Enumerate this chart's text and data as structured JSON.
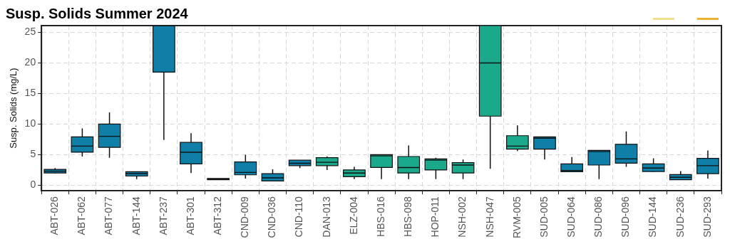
{
  "chart_data": {
    "type": "box",
    "title": "Susp. Solids Summer 2024",
    "ylabel": "Susp. Solids (mg/L)",
    "categories": [
      "ABT-026",
      "ABT-062",
      "ABT-077",
      "ABT-144",
      "ABT-237",
      "ABT-301",
      "ABT-312",
      "CND-009",
      "CND-036",
      "CND-110",
      "DAN-013",
      "ELZ-004",
      "HBS-016",
      "HBS-098",
      "HOP-011",
      "NSH-002",
      "NSH-047",
      "RVM-005",
      "SUD-005",
      "SUD-064",
      "SUD-086",
      "SUD-096",
      "SUD-144",
      "SUD-236",
      "SUD-293"
    ],
    "boxes": [
      {
        "low": 1.9,
        "q1": 2.0,
        "median": 2.3,
        "q3": 2.6,
        "high": 2.8
      },
      {
        "low": 4.7,
        "q1": 5.4,
        "median": 6.4,
        "q3": 7.9,
        "high": 9.3
      },
      {
        "low": 4.5,
        "q1": 6.2,
        "median": 8.0,
        "q3": 10.0,
        "high": 11.9
      },
      {
        "low": 1.0,
        "q1": 1.5,
        "median": 1.9,
        "q3": 2.2,
        "high": 2.2
      },
      {
        "low": 7.4,
        "q1": 18.5,
        "median": 26.1,
        "q3": 26.1,
        "high": 26.1
      },
      {
        "low": 2.0,
        "q1": 3.5,
        "median": 5.4,
        "q3": 7.0,
        "high": 8.5
      },
      {
        "low": 0.9,
        "q1": 0.9,
        "median": 1.0,
        "q3": 1.1,
        "high": 1.1
      },
      {
        "low": 1.1,
        "q1": 1.7,
        "median": 2.1,
        "q3": 3.8,
        "high": 5.0
      },
      {
        "low": 0.7,
        "q1": 0.7,
        "median": 1.2,
        "q3": 1.9,
        "high": 2.6
      },
      {
        "low": 2.8,
        "q1": 3.2,
        "median": 3.6,
        "q3": 4.1,
        "high": 4.1
      },
      {
        "low": 2.5,
        "q1": 3.2,
        "median": 3.75,
        "q3": 4.5,
        "high": 4.7
      },
      {
        "low": 1.0,
        "q1": 1.4,
        "median": 2.0,
        "q3": 2.5,
        "high": 3.0
      },
      {
        "low": 1.0,
        "q1": 2.9,
        "median": 4.8,
        "q3": 5.0,
        "high": 5.0
      },
      {
        "low": 1.0,
        "q1": 2.0,
        "median": 2.9,
        "q3": 4.7,
        "high": 6.5
      },
      {
        "low": 1.0,
        "q1": 2.5,
        "median": 4.1,
        "q3": 4.3,
        "high": 4.5
      },
      {
        "low": 1.0,
        "q1": 2.0,
        "median": 3.3,
        "q3": 3.7,
        "high": 4.2
      },
      {
        "low": 2.7,
        "q1": 11.3,
        "median": 20.0,
        "q3": 26.1,
        "high": 26.1
      },
      {
        "low": 5.6,
        "q1": 5.9,
        "median": 6.4,
        "q3": 8.1,
        "high": 9.8
      },
      {
        "low": 4.2,
        "q1": 5.9,
        "median": 7.7,
        "q3": 7.9,
        "high": 7.9
      },
      {
        "low": 2.2,
        "q1": 2.2,
        "median": 2.4,
        "q3": 3.5,
        "high": 4.6
      },
      {
        "low": 1.0,
        "q1": 3.3,
        "median": 5.5,
        "q3": 5.7,
        "high": 5.7
      },
      {
        "low": 3.0,
        "q1": 3.6,
        "median": 4.3,
        "q3": 6.7,
        "high": 8.8
      },
      {
        "low": 2.2,
        "q1": 2.25,
        "median": 2.8,
        "q3": 3.5,
        "high": 4.4
      },
      {
        "low": 0.9,
        "q1": 0.9,
        "median": 1.3,
        "q3": 1.75,
        "high": 2.3
      },
      {
        "low": 1.1,
        "q1": 1.9,
        "median": 3.2,
        "q3": 4.4,
        "high": 5.7
      }
    ],
    "colors": [
      "#0f7fa8",
      "#0f7fa8",
      "#0f7fa8",
      "#0f7fa8",
      "#0f7fa8",
      "#0f7fa8",
      "#0f7fa8",
      "#0f7fa8",
      "#0f7fa8",
      "#0f7fa8",
      "#1ba98c",
      "#1ba98c",
      "#1ba98c",
      "#1ba98c",
      "#1ba98c",
      "#1ba98c",
      "#1ba98c",
      "#1ba98c",
      "#0f7fa8",
      "#0f7fa8",
      "#0f7fa8",
      "#0f7fa8",
      "#0f7fa8",
      "#0f7fa8",
      "#0f7fa8"
    ],
    "ylim": [
      -0.9,
      26.1
    ],
    "yticks": [
      0,
      5,
      10,
      15,
      20,
      25
    ],
    "grid": true
  }
}
